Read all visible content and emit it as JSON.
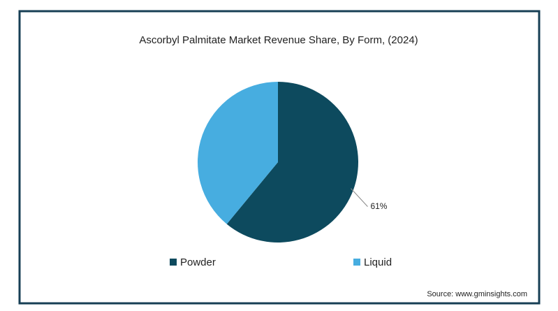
{
  "chart_data": {
    "type": "pie",
    "title": "Ascorbyl Palmitate Market Revenue Share, By Form,  (2024)",
    "categories": [
      "Powder",
      "Liquid"
    ],
    "values": [
      61,
      39
    ],
    "value_labels": [
      "61%",
      null
    ],
    "colors": [
      "#0d4a5e",
      "#47ade0"
    ],
    "legend": "bottom",
    "source": "Source: www.gminsights.com"
  }
}
